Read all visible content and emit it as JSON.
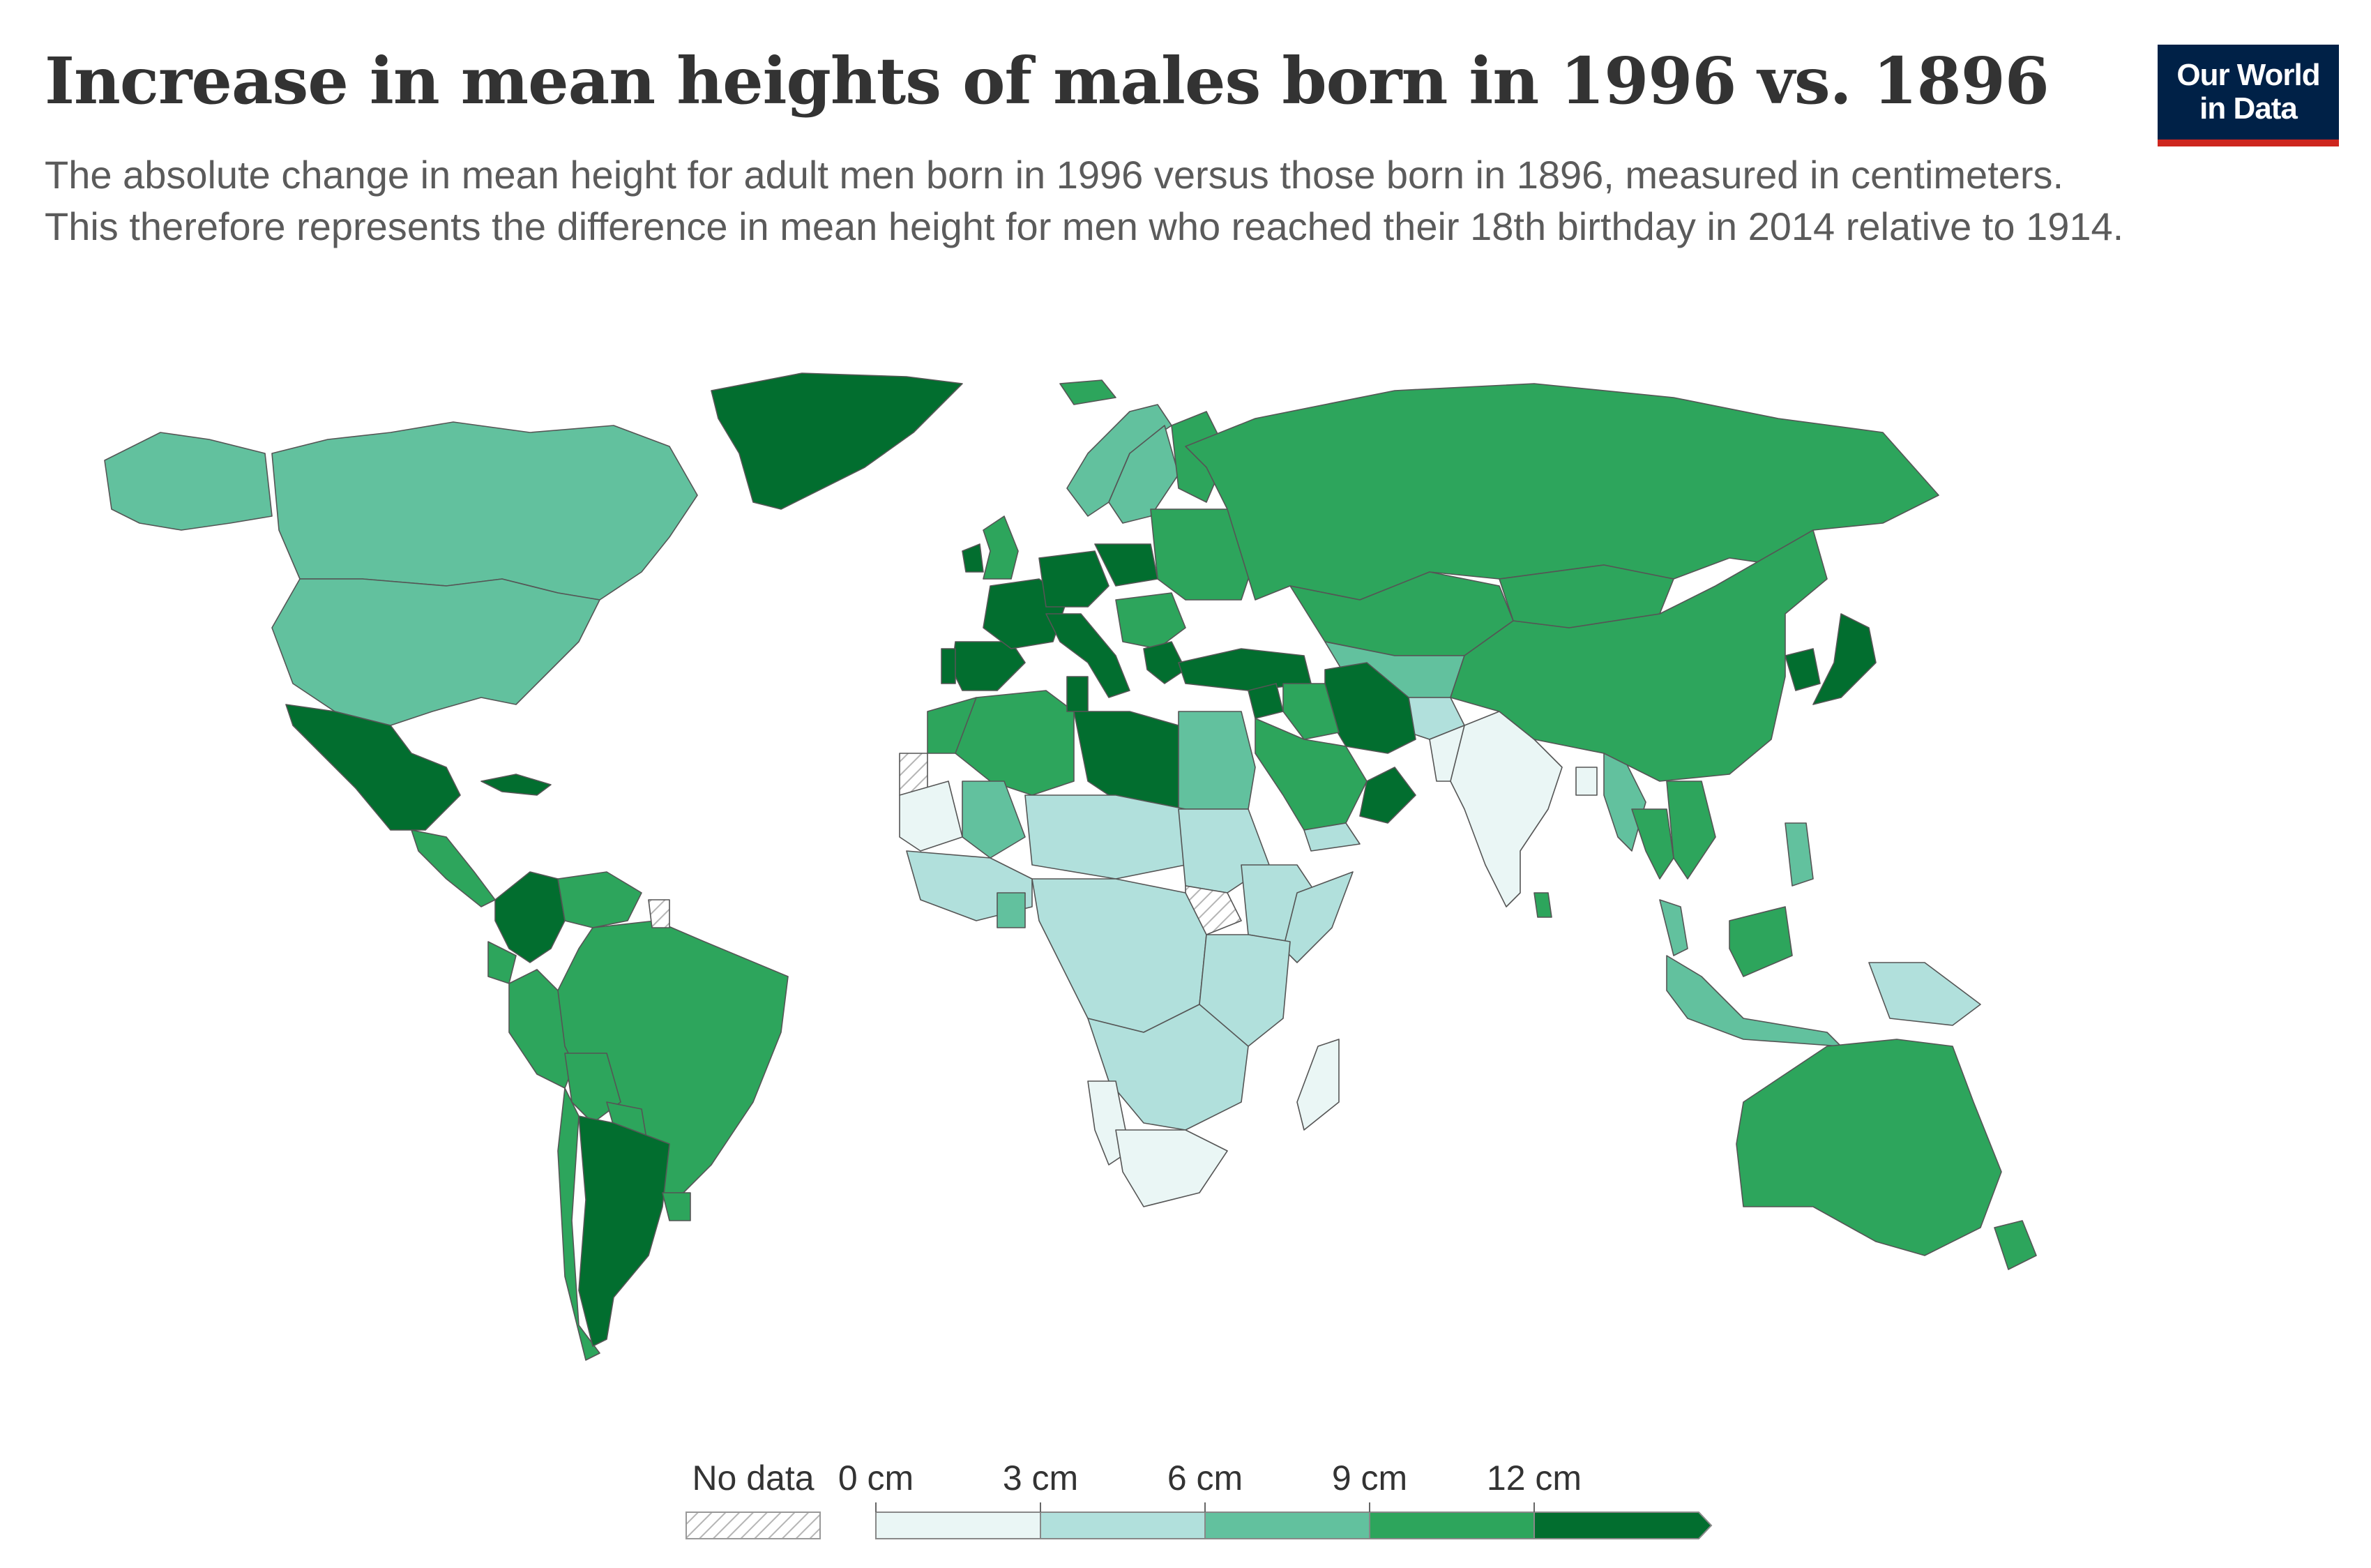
{
  "header": {
    "title": "Increase in mean heights of males born in 1996 vs. 1896",
    "subtitle": "The absolute change in mean height for adult men born in 1996 versus those born in 1896, measured in centimeters. This therefore represents the difference in mean height for men who reached their 18th birthday in 2014 relative to 1914."
  },
  "logo": {
    "line1": "Our World",
    "line2": "in Data"
  },
  "legend": {
    "no_data_label": "No data",
    "bins": [
      {
        "label": "0 cm",
        "color": "#eaf6f5"
      },
      {
        "label": "3 cm",
        "color": "#b1e0dc"
      },
      {
        "label": "6 cm",
        "color": "#62c19e"
      },
      {
        "label": "9 cm",
        "color": "#2da55c"
      },
      {
        "label": "12 cm",
        "color": "#026e2f"
      }
    ]
  },
  "colors": {
    "bin_0_3": "#eaf6f5",
    "bin_3_6": "#b1e0dc",
    "bin_6_9": "#62c19e",
    "bin_9_12": "#2da55c",
    "bin_12_plus": "#026e2f",
    "no_data": "hatched"
  },
  "map_data": {
    "regions": [
      {
        "name": "Canada",
        "bin": "6-9"
      },
      {
        "name": "United States",
        "bin": "6-9"
      },
      {
        "name": "Alaska",
        "bin": "6-9"
      },
      {
        "name": "Greenland",
        "bin": "12+"
      },
      {
        "name": "Mexico",
        "bin": "12+"
      },
      {
        "name": "Cuba",
        "bin": "12+"
      },
      {
        "name": "Central America",
        "bin": "9-12"
      },
      {
        "name": "Colombia",
        "bin": "12+"
      },
      {
        "name": "Venezuela",
        "bin": "9-12"
      },
      {
        "name": "Ecuador",
        "bin": "9-12"
      },
      {
        "name": "Peru",
        "bin": "9-12"
      },
      {
        "name": "Brazil",
        "bin": "9-12"
      },
      {
        "name": "Bolivia",
        "bin": "9-12"
      },
      {
        "name": "Paraguay",
        "bin": "9-12"
      },
      {
        "name": "Chile",
        "bin": "9-12"
      },
      {
        "name": "Argentina",
        "bin": "12+"
      },
      {
        "name": "Uruguay",
        "bin": "9-12"
      },
      {
        "name": "French Guiana",
        "bin": "No data"
      },
      {
        "name": "Iceland",
        "bin": "9-12"
      },
      {
        "name": "Norway",
        "bin": "6-9"
      },
      {
        "name": "Sweden",
        "bin": "6-9"
      },
      {
        "name": "Finland",
        "bin": "9-12"
      },
      {
        "name": "United Kingdom",
        "bin": "9-12"
      },
      {
        "name": "Ireland",
        "bin": "12+"
      },
      {
        "name": "Spain",
        "bin": "12+"
      },
      {
        "name": "Portugal",
        "bin": "12+"
      },
      {
        "name": "France",
        "bin": "12+"
      },
      {
        "name": "Germany",
        "bin": "12+"
      },
      {
        "name": "Poland",
        "bin": "12+"
      },
      {
        "name": "Italy",
        "bin": "12+"
      },
      {
        "name": "Balkans",
        "bin": "9-12"
      },
      {
        "name": "Greece",
        "bin": "12+"
      },
      {
        "name": "Turkey",
        "bin": "12+"
      },
      {
        "name": "Eastern Europe",
        "bin": "9-12"
      },
      {
        "name": "Russia",
        "bin": "9-12"
      },
      {
        "name": "Kazakhstan",
        "bin": "9-12"
      },
      {
        "name": "Central Asia",
        "bin": "6-9"
      },
      {
        "name": "Afghanistan",
        "bin": "3-6"
      },
      {
        "name": "Iran",
        "bin": "12+"
      },
      {
        "name": "Iraq",
        "bin": "9-12"
      },
      {
        "name": "Syria",
        "bin": "12+"
      },
      {
        "name": "Saudi Arabia",
        "bin": "9-12"
      },
      {
        "name": "Oman",
        "bin": "12+"
      },
      {
        "name": "Yemen",
        "bin": "3-6"
      },
      {
        "name": "Pakistan",
        "bin": "0-3"
      },
      {
        "name": "India",
        "bin": "0-3"
      },
      {
        "name": "Sri Lanka",
        "bin": "9-12"
      },
      {
        "name": "Bangladesh",
        "bin": "0-3"
      },
      {
        "name": "Myanmar",
        "bin": "6-9"
      },
      {
        "name": "Thailand",
        "bin": "9-12"
      },
      {
        "name": "Vietnam",
        "bin": "9-12"
      },
      {
        "name": "Malaysia",
        "bin": "6-9"
      },
      {
        "name": "China",
        "bin": "9-12"
      },
      {
        "name": "Mongolia",
        "bin": "9-12"
      },
      {
        "name": "Korea",
        "bin": "12+"
      },
      {
        "name": "Japan",
        "bin": "12+"
      },
      {
        "name": "Philippines",
        "bin": "6-9"
      },
      {
        "name": "Indonesia",
        "bin": "6-9"
      },
      {
        "name": "Borneo",
        "bin": "9-12"
      },
      {
        "name": "Papua New Guinea",
        "bin": "3-6"
      },
      {
        "name": "Australia",
        "bin": "9-12"
      },
      {
        "name": "New Zealand",
        "bin": "9-12"
      },
      {
        "name": "Morocco",
        "bin": "9-12"
      },
      {
        "name": "Western Sahara",
        "bin": "No data"
      },
      {
        "name": "Algeria",
        "bin": "9-12"
      },
      {
        "name": "Tunisia",
        "bin": "12+"
      },
      {
        "name": "Libya",
        "bin": "12+"
      },
      {
        "name": "Egypt",
        "bin": "6-9"
      },
      {
        "name": "Mauritania",
        "bin": "0-3"
      },
      {
        "name": "Mali",
        "bin": "6-9"
      },
      {
        "name": "Sahel",
        "bin": "3-6"
      },
      {
        "name": "Sudan",
        "bin": "3-6"
      },
      {
        "name": "South Sudan",
        "bin": "No data"
      },
      {
        "name": "Ethiopia",
        "bin": "3-6"
      },
      {
        "name": "Somalia",
        "bin": "3-6"
      },
      {
        "name": "West Africa",
        "bin": "3-6"
      },
      {
        "name": "Ghana",
        "bin": "6-9"
      },
      {
        "name": "Central Africa",
        "bin": "3-6"
      },
      {
        "name": "East Africa",
        "bin": "3-6"
      },
      {
        "name": "Southern Africa",
        "bin": "3-6"
      },
      {
        "name": "Namibia",
        "bin": "0-3"
      },
      {
        "name": "South Africa",
        "bin": "0-3"
      },
      {
        "name": "Madagascar",
        "bin": "0-3"
      }
    ]
  }
}
